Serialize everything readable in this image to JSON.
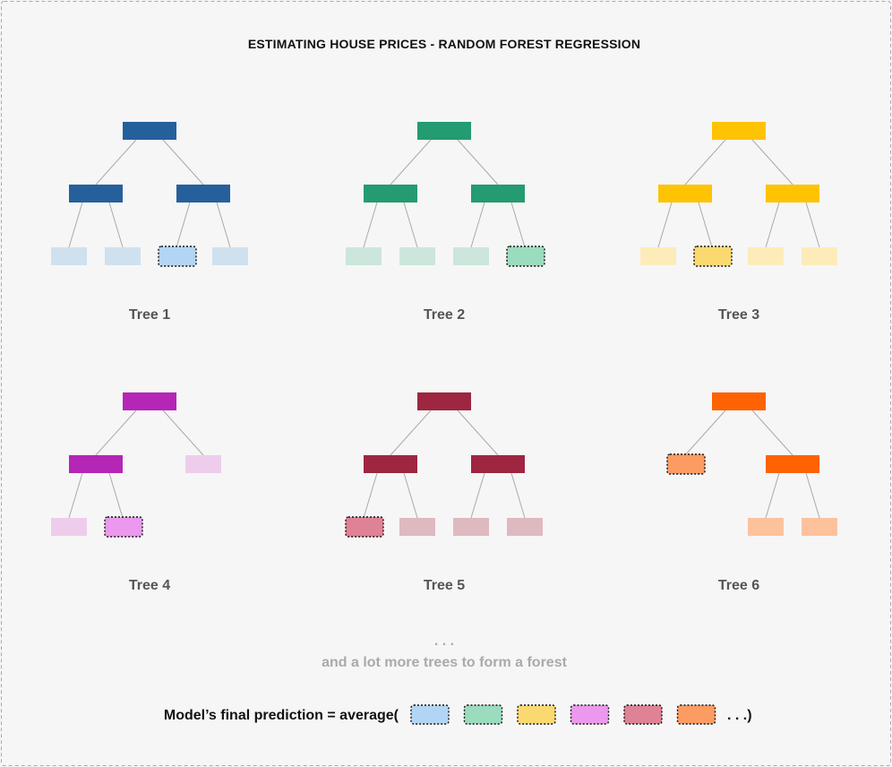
{
  "title": "ESTIMATING HOUSE PRICES - RANDOM FOREST REGRESSION",
  "trees": [
    {
      "label": "Tree 1",
      "colors": {
        "node": "#26609c",
        "leaf": "#cfe1ef",
        "selected": "#b2d5f5"
      },
      "nodes": [
        {
          "id": "n1",
          "type": "internal"
        },
        {
          "id": "n2",
          "type": "internal",
          "parent": "n1"
        },
        {
          "id": "n3",
          "type": "internal",
          "parent": "n1"
        },
        {
          "id": "n4",
          "type": "leaf",
          "parent": "n2"
        },
        {
          "id": "n5",
          "type": "leaf",
          "parent": "n2"
        },
        {
          "id": "n6",
          "type": "selected",
          "parent": "n3"
        },
        {
          "id": "n7",
          "type": "leaf",
          "parent": "n3"
        }
      ]
    },
    {
      "label": "Tree 2",
      "colors": {
        "node": "#249b70",
        "leaf": "#cce6db",
        "selected": "#9adcbd"
      },
      "nodes": [
        {
          "id": "n1",
          "type": "internal"
        },
        {
          "id": "n2",
          "type": "internal",
          "parent": "n1"
        },
        {
          "id": "n3",
          "type": "internal",
          "parent": "n1"
        },
        {
          "id": "n4",
          "type": "leaf",
          "parent": "n2"
        },
        {
          "id": "n5",
          "type": "leaf",
          "parent": "n2"
        },
        {
          "id": "n6",
          "type": "leaf",
          "parent": "n3"
        },
        {
          "id": "n7",
          "type": "selected",
          "parent": "n3"
        }
      ]
    },
    {
      "label": "Tree 3",
      "colors": {
        "node": "#fec303",
        "leaf": "#fdecba",
        "selected": "#fad970"
      },
      "nodes": [
        {
          "id": "n1",
          "type": "internal"
        },
        {
          "id": "n2",
          "type": "internal",
          "parent": "n1"
        },
        {
          "id": "n3",
          "type": "internal",
          "parent": "n1"
        },
        {
          "id": "n4",
          "type": "leaf",
          "parent": "n2"
        },
        {
          "id": "n5",
          "type": "selected",
          "parent": "n2"
        },
        {
          "id": "n6",
          "type": "leaf",
          "parent": "n3"
        },
        {
          "id": "n7",
          "type": "leaf",
          "parent": "n3"
        }
      ]
    },
    {
      "label": "Tree 4",
      "colors": {
        "node": "#b525b6",
        "leaf": "#eecdec",
        "selected": "#eb98ee"
      },
      "nodes": [
        {
          "id": "n1",
          "type": "internal"
        },
        {
          "id": "n2",
          "type": "internal",
          "parent": "n1"
        },
        {
          "id": "n3",
          "type": "leaf",
          "parent": "n1"
        },
        {
          "id": "n4",
          "type": "leaf",
          "parent": "n2"
        },
        {
          "id": "n5",
          "type": "selected",
          "parent": "n2"
        }
      ]
    },
    {
      "label": "Tree 5",
      "colors": {
        "node": "#9e2641",
        "leaf": "#dfb9c0",
        "selected": "#df8296"
      },
      "nodes": [
        {
          "id": "n1",
          "type": "internal"
        },
        {
          "id": "n2",
          "type": "internal",
          "parent": "n1"
        },
        {
          "id": "n3",
          "type": "internal",
          "parent": "n1"
        },
        {
          "id": "n4",
          "type": "selected",
          "parent": "n2"
        },
        {
          "id": "n5",
          "type": "leaf",
          "parent": "n2"
        },
        {
          "id": "n6",
          "type": "leaf",
          "parent": "n3"
        },
        {
          "id": "n7",
          "type": "leaf",
          "parent": "n3"
        }
      ]
    },
    {
      "label": "Tree 6",
      "colors": {
        "node": "#fe6203",
        "leaf": "#fdc29b",
        "selected": "#fc9b62"
      },
      "nodes": [
        {
          "id": "n1",
          "type": "internal"
        },
        {
          "id": "n2",
          "type": "selected",
          "parent": "n1"
        },
        {
          "id": "n3",
          "type": "internal",
          "parent": "n1"
        },
        {
          "id": "n6",
          "type": "leaf",
          "parent": "n3"
        },
        {
          "id": "n7",
          "type": "leaf",
          "parent": "n3"
        }
      ]
    }
  ],
  "ellipsis": ". . .",
  "more_trees_text": "and a lot more trees to form a forest",
  "prediction": {
    "prefix": "Model’s final prediction = average(",
    "suffix": ". . .)"
  },
  "frame_color": "#aaaaaa"
}
